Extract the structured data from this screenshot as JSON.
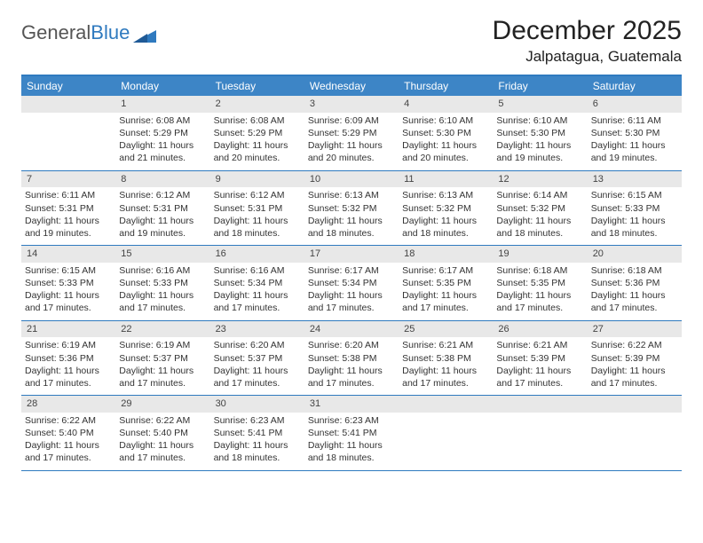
{
  "logo": {
    "word1": "General",
    "word2": "Blue"
  },
  "header": {
    "title": "December 2025",
    "location": "Jalpatagua, Guatemala"
  },
  "colors": {
    "header_bar": "#3d85c6",
    "border": "#2f7abf",
    "daynum_bg": "#e8e8e8",
    "text": "#333333",
    "logo_gray": "#666666",
    "logo_blue": "#2f7abf"
  },
  "weekdays": [
    "Sunday",
    "Monday",
    "Tuesday",
    "Wednesday",
    "Thursday",
    "Friday",
    "Saturday"
  ],
  "weeks": [
    [
      {
        "n": "",
        "lines": [
          "",
          "",
          "",
          ""
        ]
      },
      {
        "n": "1",
        "lines": [
          "Sunrise: 6:08 AM",
          "Sunset: 5:29 PM",
          "Daylight: 11 hours",
          "and 21 minutes."
        ]
      },
      {
        "n": "2",
        "lines": [
          "Sunrise: 6:08 AM",
          "Sunset: 5:29 PM",
          "Daylight: 11 hours",
          "and 20 minutes."
        ]
      },
      {
        "n": "3",
        "lines": [
          "Sunrise: 6:09 AM",
          "Sunset: 5:29 PM",
          "Daylight: 11 hours",
          "and 20 minutes."
        ]
      },
      {
        "n": "4",
        "lines": [
          "Sunrise: 6:10 AM",
          "Sunset: 5:30 PM",
          "Daylight: 11 hours",
          "and 20 minutes."
        ]
      },
      {
        "n": "5",
        "lines": [
          "Sunrise: 6:10 AM",
          "Sunset: 5:30 PM",
          "Daylight: 11 hours",
          "and 19 minutes."
        ]
      },
      {
        "n": "6",
        "lines": [
          "Sunrise: 6:11 AM",
          "Sunset: 5:30 PM",
          "Daylight: 11 hours",
          "and 19 minutes."
        ]
      }
    ],
    [
      {
        "n": "7",
        "lines": [
          "Sunrise: 6:11 AM",
          "Sunset: 5:31 PM",
          "Daylight: 11 hours",
          "and 19 minutes."
        ]
      },
      {
        "n": "8",
        "lines": [
          "Sunrise: 6:12 AM",
          "Sunset: 5:31 PM",
          "Daylight: 11 hours",
          "and 19 minutes."
        ]
      },
      {
        "n": "9",
        "lines": [
          "Sunrise: 6:12 AM",
          "Sunset: 5:31 PM",
          "Daylight: 11 hours",
          "and 18 minutes."
        ]
      },
      {
        "n": "10",
        "lines": [
          "Sunrise: 6:13 AM",
          "Sunset: 5:32 PM",
          "Daylight: 11 hours",
          "and 18 minutes."
        ]
      },
      {
        "n": "11",
        "lines": [
          "Sunrise: 6:13 AM",
          "Sunset: 5:32 PM",
          "Daylight: 11 hours",
          "and 18 minutes."
        ]
      },
      {
        "n": "12",
        "lines": [
          "Sunrise: 6:14 AM",
          "Sunset: 5:32 PM",
          "Daylight: 11 hours",
          "and 18 minutes."
        ]
      },
      {
        "n": "13",
        "lines": [
          "Sunrise: 6:15 AM",
          "Sunset: 5:33 PM",
          "Daylight: 11 hours",
          "and 18 minutes."
        ]
      }
    ],
    [
      {
        "n": "14",
        "lines": [
          "Sunrise: 6:15 AM",
          "Sunset: 5:33 PM",
          "Daylight: 11 hours",
          "and 17 minutes."
        ]
      },
      {
        "n": "15",
        "lines": [
          "Sunrise: 6:16 AM",
          "Sunset: 5:33 PM",
          "Daylight: 11 hours",
          "and 17 minutes."
        ]
      },
      {
        "n": "16",
        "lines": [
          "Sunrise: 6:16 AM",
          "Sunset: 5:34 PM",
          "Daylight: 11 hours",
          "and 17 minutes."
        ]
      },
      {
        "n": "17",
        "lines": [
          "Sunrise: 6:17 AM",
          "Sunset: 5:34 PM",
          "Daylight: 11 hours",
          "and 17 minutes."
        ]
      },
      {
        "n": "18",
        "lines": [
          "Sunrise: 6:17 AM",
          "Sunset: 5:35 PM",
          "Daylight: 11 hours",
          "and 17 minutes."
        ]
      },
      {
        "n": "19",
        "lines": [
          "Sunrise: 6:18 AM",
          "Sunset: 5:35 PM",
          "Daylight: 11 hours",
          "and 17 minutes."
        ]
      },
      {
        "n": "20",
        "lines": [
          "Sunrise: 6:18 AM",
          "Sunset: 5:36 PM",
          "Daylight: 11 hours",
          "and 17 minutes."
        ]
      }
    ],
    [
      {
        "n": "21",
        "lines": [
          "Sunrise: 6:19 AM",
          "Sunset: 5:36 PM",
          "Daylight: 11 hours",
          "and 17 minutes."
        ]
      },
      {
        "n": "22",
        "lines": [
          "Sunrise: 6:19 AM",
          "Sunset: 5:37 PM",
          "Daylight: 11 hours",
          "and 17 minutes."
        ]
      },
      {
        "n": "23",
        "lines": [
          "Sunrise: 6:20 AM",
          "Sunset: 5:37 PM",
          "Daylight: 11 hours",
          "and 17 minutes."
        ]
      },
      {
        "n": "24",
        "lines": [
          "Sunrise: 6:20 AM",
          "Sunset: 5:38 PM",
          "Daylight: 11 hours",
          "and 17 minutes."
        ]
      },
      {
        "n": "25",
        "lines": [
          "Sunrise: 6:21 AM",
          "Sunset: 5:38 PM",
          "Daylight: 11 hours",
          "and 17 minutes."
        ]
      },
      {
        "n": "26",
        "lines": [
          "Sunrise: 6:21 AM",
          "Sunset: 5:39 PM",
          "Daylight: 11 hours",
          "and 17 minutes."
        ]
      },
      {
        "n": "27",
        "lines": [
          "Sunrise: 6:22 AM",
          "Sunset: 5:39 PM",
          "Daylight: 11 hours",
          "and 17 minutes."
        ]
      }
    ],
    [
      {
        "n": "28",
        "lines": [
          "Sunrise: 6:22 AM",
          "Sunset: 5:40 PM",
          "Daylight: 11 hours",
          "and 17 minutes."
        ]
      },
      {
        "n": "29",
        "lines": [
          "Sunrise: 6:22 AM",
          "Sunset: 5:40 PM",
          "Daylight: 11 hours",
          "and 17 minutes."
        ]
      },
      {
        "n": "30",
        "lines": [
          "Sunrise: 6:23 AM",
          "Sunset: 5:41 PM",
          "Daylight: 11 hours",
          "and 18 minutes."
        ]
      },
      {
        "n": "31",
        "lines": [
          "Sunrise: 6:23 AM",
          "Sunset: 5:41 PM",
          "Daylight: 11 hours",
          "and 18 minutes."
        ]
      },
      {
        "n": "",
        "lines": [
          "",
          "",
          "",
          ""
        ]
      },
      {
        "n": "",
        "lines": [
          "",
          "",
          "",
          ""
        ]
      },
      {
        "n": "",
        "lines": [
          "",
          "",
          "",
          ""
        ]
      }
    ]
  ]
}
